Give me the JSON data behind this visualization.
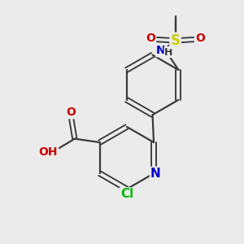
{
  "bg_color": "#ebebeb",
  "bond_color": "#3a3a3a",
  "bond_width": 1.6,
  "atom_colors": {
    "C": "#3a3a3a",
    "N": "#0000cc",
    "O": "#cc0000",
    "S": "#cccc00",
    "Cl": "#00bb00",
    "H": "#3a3a3a"
  },
  "font_size": 10
}
